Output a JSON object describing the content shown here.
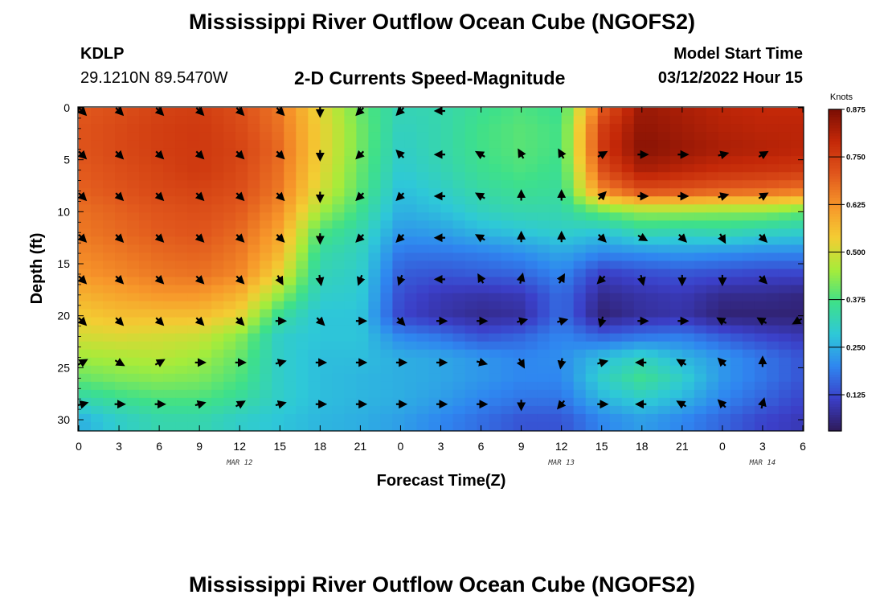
{
  "page": {
    "title": "Mississippi River Outflow Ocean Cube (NGOFS2)",
    "title_repeat": "Mississippi River Outflow Ocean Cube (NGOFS2)",
    "station_id": "KDLP",
    "station_coords": "29.1210N  89.5470W",
    "subtitle": "2-D Currents Speed-Magnitude",
    "model_start_label": "Model Start Time",
    "model_start_value": "03/12/2022 Hour 15"
  },
  "chart_data": {
    "type": "heatmap",
    "title": "2-D Currents Speed-Magnitude",
    "xlabel": "Forecast Time(Z)",
    "ylabel": "Depth (ft)",
    "x_tick_labels": [
      "0",
      "3",
      "6",
      "9",
      "12",
      "15",
      "18",
      "21",
      "0",
      "3",
      "6",
      "9",
      "12",
      "15",
      "18",
      "21",
      "0",
      "3",
      "6"
    ],
    "x_range_hours": [
      0,
      54
    ],
    "date_labels": [
      {
        "text": "MAR 12",
        "hour": 12
      },
      {
        "text": "MAR 13",
        "hour": 36
      },
      {
        "text": "MAR 14",
        "hour": 51
      }
    ],
    "y_ticks": [
      0,
      5,
      10,
      15,
      20,
      25,
      30
    ],
    "ylim": [
      0,
      31
    ],
    "y_inverted": true,
    "colorbar": {
      "title": "Knots",
      "ticks": [
        "0.875",
        "0.750",
        "0.625",
        "0.500",
        "0.375",
        "0.250",
        "0.125"
      ],
      "range": [
        0.03,
        0.875
      ],
      "colors": [
        "#2e1a5a",
        "#3b3fc8",
        "#2f86f0",
        "#2ec8d8",
        "#3ee08a",
        "#a6ec3a",
        "#f3cd33",
        "#f7962a",
        "#e0561c",
        "#c42808",
        "#7a0e04"
      ]
    },
    "grid": false,
    "speed_depths": [
      0,
      2,
      4,
      6,
      8,
      10,
      12,
      14,
      16,
      18,
      20,
      22,
      24,
      26,
      28,
      30
    ],
    "speed_hours": [
      0,
      3,
      6,
      9,
      12,
      15,
      18,
      21,
      24,
      27,
      30,
      33,
      36,
      39,
      42,
      45,
      48,
      51,
      54
    ],
    "speed_values": [
      [
        0.7,
        0.72,
        0.74,
        0.75,
        0.72,
        0.66,
        0.52,
        0.4,
        0.32,
        0.33,
        0.36,
        0.38,
        0.36,
        0.7,
        0.84,
        0.82,
        0.8,
        0.79,
        0.79
      ],
      [
        0.71,
        0.73,
        0.75,
        0.76,
        0.73,
        0.67,
        0.53,
        0.41,
        0.31,
        0.33,
        0.37,
        0.39,
        0.37,
        0.75,
        0.85,
        0.83,
        0.81,
        0.8,
        0.8
      ],
      [
        0.71,
        0.73,
        0.75,
        0.76,
        0.74,
        0.68,
        0.53,
        0.41,
        0.3,
        0.33,
        0.37,
        0.39,
        0.37,
        0.76,
        0.86,
        0.84,
        0.82,
        0.81,
        0.8
      ],
      [
        0.7,
        0.72,
        0.74,
        0.76,
        0.73,
        0.67,
        0.52,
        0.4,
        0.29,
        0.32,
        0.36,
        0.38,
        0.36,
        0.72,
        0.82,
        0.8,
        0.78,
        0.77,
        0.76
      ],
      [
        0.69,
        0.71,
        0.73,
        0.74,
        0.72,
        0.66,
        0.5,
        0.39,
        0.27,
        0.3,
        0.34,
        0.36,
        0.35,
        0.64,
        0.72,
        0.71,
        0.69,
        0.68,
        0.66
      ],
      [
        0.67,
        0.69,
        0.71,
        0.72,
        0.7,
        0.63,
        0.45,
        0.36,
        0.25,
        0.27,
        0.31,
        0.33,
        0.33,
        0.4,
        0.44,
        0.44,
        0.43,
        0.43,
        0.4
      ],
      [
        0.66,
        0.68,
        0.7,
        0.71,
        0.68,
        0.6,
        0.38,
        0.33,
        0.22,
        0.23,
        0.26,
        0.28,
        0.3,
        0.28,
        0.33,
        0.32,
        0.33,
        0.31,
        0.3
      ],
      [
        0.64,
        0.66,
        0.68,
        0.69,
        0.66,
        0.57,
        0.34,
        0.31,
        0.18,
        0.18,
        0.19,
        0.21,
        0.24,
        0.2,
        0.21,
        0.22,
        0.21,
        0.2,
        0.2
      ],
      [
        0.62,
        0.64,
        0.66,
        0.67,
        0.64,
        0.52,
        0.32,
        0.3,
        0.15,
        0.14,
        0.15,
        0.16,
        0.2,
        0.11,
        0.13,
        0.14,
        0.13,
        0.12,
        0.12
      ],
      [
        0.58,
        0.6,
        0.62,
        0.62,
        0.58,
        0.44,
        0.3,
        0.29,
        0.13,
        0.1,
        0.09,
        0.1,
        0.17,
        0.07,
        0.09,
        0.1,
        0.07,
        0.07,
        0.06
      ],
      [
        0.54,
        0.56,
        0.56,
        0.56,
        0.52,
        0.35,
        0.28,
        0.28,
        0.12,
        0.09,
        0.07,
        0.08,
        0.17,
        0.05,
        0.08,
        0.09,
        0.05,
        0.05,
        0.05
      ],
      [
        0.5,
        0.51,
        0.5,
        0.49,
        0.43,
        0.3,
        0.28,
        0.28,
        0.2,
        0.18,
        0.14,
        0.16,
        0.2,
        0.16,
        0.18,
        0.19,
        0.15,
        0.12,
        0.1
      ],
      [
        0.45,
        0.46,
        0.47,
        0.45,
        0.4,
        0.3,
        0.27,
        0.27,
        0.25,
        0.24,
        0.22,
        0.2,
        0.21,
        0.27,
        0.31,
        0.26,
        0.22,
        0.18,
        0.14
      ],
      [
        0.4,
        0.42,
        0.43,
        0.42,
        0.38,
        0.3,
        0.27,
        0.26,
        0.25,
        0.24,
        0.22,
        0.2,
        0.2,
        0.3,
        0.36,
        0.3,
        0.22,
        0.18,
        0.14
      ],
      [
        0.33,
        0.36,
        0.38,
        0.38,
        0.35,
        0.3,
        0.27,
        0.26,
        0.25,
        0.23,
        0.2,
        0.18,
        0.18,
        0.26,
        0.3,
        0.26,
        0.2,
        0.16,
        0.12
      ],
      [
        0.25,
        0.3,
        0.33,
        0.33,
        0.3,
        0.28,
        0.26,
        0.25,
        0.23,
        0.2,
        0.17,
        0.14,
        0.14,
        0.2,
        0.23,
        0.2,
        0.16,
        0.12,
        0.1
      ]
    ],
    "vector_depths": [
      0,
      4.5,
      8.5,
      12.5,
      16.5,
      20.5,
      24.5,
      28.5
    ],
    "vector_hours": [
      0,
      3,
      6,
      9,
      12,
      15,
      18,
      21,
      24,
      27,
      30,
      33,
      36,
      39,
      42,
      45,
      48,
      51,
      54
    ],
    "vector_dirs_deg": [
      [
        135,
        135,
        135,
        135,
        135,
        135,
        180,
        225,
        225,
        270,
        null,
        null,
        null,
        null,
        null,
        null,
        null,
        null,
        null
      ],
      [
        135,
        135,
        135,
        135,
        135,
        135,
        180,
        225,
        315,
        270,
        300,
        330,
        330,
        60,
        90,
        90,
        75,
        60,
        null
      ],
      [
        135,
        135,
        135,
        135,
        135,
        135,
        180,
        225,
        225,
        270,
        300,
        0,
        0,
        45,
        90,
        90,
        75,
        60,
        null
      ],
      [
        135,
        135,
        135,
        135,
        135,
        135,
        180,
        225,
        225,
        270,
        300,
        0,
        0,
        135,
        120,
        135,
        150,
        135,
        null
      ],
      [
        135,
        135,
        135,
        135,
        135,
        150,
        170,
        200,
        200,
        270,
        330,
        15,
        30,
        225,
        165,
        180,
        180,
        135,
        null
      ],
      [
        135,
        135,
        135,
        135,
        135,
        90,
        135,
        90,
        135,
        90,
        90,
        75,
        75,
        195,
        90,
        90,
        300,
        300,
        240
      ],
      [
        60,
        120,
        60,
        90,
        90,
        75,
        90,
        90,
        90,
        90,
        105,
        150,
        190,
        75,
        270,
        300,
        315,
        0,
        null
      ],
      [
        75,
        90,
        90,
        75,
        60,
        75,
        90,
        90,
        90,
        90,
        90,
        180,
        220,
        90,
        270,
        300,
        315,
        15,
        null
      ]
    ]
  }
}
